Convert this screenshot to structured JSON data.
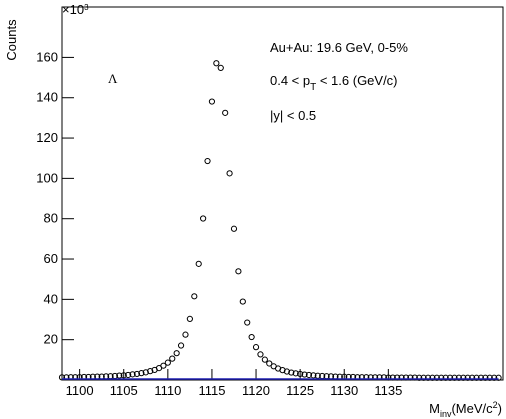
{
  "chart_data": {
    "type": "scatter",
    "ylabel": "Counts",
    "y_multiplier": {
      "base": "×10",
      "exponent": "3"
    },
    "xlabel": {
      "symbol": "M",
      "sub": "inv",
      "unit": "(MeV/c",
      "sup": "2",
      "close": ")"
    },
    "annotations": {
      "particle": "Λ",
      "system": "Au+Au: 19.6 GeV, 0-5%",
      "pt": {
        "before": "0.4 < p",
        "sub": "T",
        "after": " < 1.6 (GeV/c)"
      },
      "rapidity": "|y| < 0.5"
    },
    "xlim": [
      1098,
      1148
    ],
    "ylim": [
      0,
      185
    ],
    "xticks": [
      1100,
      1105,
      1110,
      1115,
      1120,
      1125,
      1130,
      1135
    ],
    "yticks": [
      20,
      40,
      60,
      80,
      100,
      120,
      140,
      160
    ],
    "x": [
      1098,
      1098.5,
      1099,
      1099.5,
      1100,
      1100.5,
      1101,
      1101.5,
      1102,
      1102.5,
      1103,
      1103.5,
      1104,
      1104.5,
      1105,
      1105.5,
      1106,
      1106.5,
      1107,
      1107.5,
      1108,
      1108.5,
      1109,
      1109.5,
      1110,
      1110.5,
      1111,
      1111.5,
      1112,
      1112.5,
      1113,
      1113.5,
      1114,
      1114.5,
      1115,
      1115.5,
      1116,
      1116.5,
      1117,
      1117.5,
      1118,
      1118.5,
      1119,
      1119.5,
      1120,
      1120.5,
      1121,
      1121.5,
      1122,
      1122.5,
      1123,
      1123.5,
      1124,
      1124.5,
      1125,
      1125.5,
      1126,
      1126.5,
      1127,
      1127.5,
      1128,
      1128.5,
      1129,
      1129.5,
      1130,
      1130.5,
      1131,
      1131.5,
      1132,
      1132.5,
      1133,
      1133.5,
      1134,
      1134.5,
      1135,
      1135.5,
      1136,
      1136.5,
      1137,
      1137.5,
      1138,
      1138.5,
      1139,
      1139.5,
      1140,
      1140.5,
      1141,
      1141.5,
      1142,
      1142.5,
      1143,
      1143.5,
      1144,
      1144.5,
      1145,
      1145.5,
      1146,
      1146.5,
      1147,
      1147.5
    ],
    "series": [
      {
        "color": "#000000",
        "style": "markers",
        "values": [
          1.3,
          1.3,
          1.4,
          1.4,
          1.4,
          1.5,
          1.5,
          1.6,
          1.7,
          1.7,
          1.8,
          1.9,
          2.0,
          2.2,
          2.3,
          2.5,
          2.8,
          3.0,
          3.4,
          3.8,
          4.4,
          5.0,
          5.9,
          7.1,
          8.6,
          10.6,
          13.3,
          17.1,
          22.5,
          30.3,
          41.5,
          57.6,
          80.1,
          108.6,
          138.1,
          157.1,
          154.8,
          132.5,
          102.5,
          75.0,
          53.9,
          38.9,
          28.5,
          21.3,
          16.3,
          12.7,
          10.1,
          8.2,
          6.8,
          5.7,
          4.9,
          4.2,
          3.7,
          3.3,
          3.0,
          2.7,
          2.5,
          2.3,
          2.1,
          2.0,
          1.9,
          1.8,
          1.7,
          1.6,
          1.6,
          1.5,
          1.5,
          1.4,
          1.4,
          1.4,
          1.3,
          1.3,
          1.3,
          1.3,
          1.2,
          1.2,
          1.2,
          1.2,
          1.2,
          1.2,
          1.2,
          1.1,
          1.1,
          1.1,
          1.1,
          1.1,
          1.1,
          1.1,
          1.1,
          1.1,
          1.1,
          1.1,
          1.1,
          1.1,
          1.1,
          1.1,
          1.1,
          1.1,
          1.1,
          1.1
        ]
      },
      {
        "color": "#1f1fb4",
        "style": "line",
        "values": [
          0.5,
          0.5,
          0.5,
          0.5,
          0.5,
          0.5,
          0.5,
          0.5,
          0.5,
          0.5,
          0.5,
          0.5,
          0.5,
          0.5,
          0.5,
          0.5,
          0.5,
          0.5,
          0.5,
          0.5,
          0.5,
          0.5,
          0.5,
          0.5,
          0.5,
          0.5,
          0.5,
          0.5,
          0.5,
          0.5,
          0.5,
          0.5,
          0.5,
          0.5,
          0.5,
          0.5,
          0.5,
          0.5,
          0.5,
          0.5,
          0.5,
          0.5,
          0.5,
          0.5,
          0.5,
          0.5,
          0.5,
          0.5,
          0.5,
          0.5,
          0.5,
          0.5,
          0.5,
          0.5,
          0.5,
          0.5,
          0.5,
          0.5,
          0.5,
          0.5,
          0.5,
          0.5,
          0.5,
          0.5,
          0.5,
          0.5,
          0.5,
          0.5,
          0.5,
          0.5,
          0.5,
          0.5,
          0.5,
          0.5,
          0.5,
          0.5,
          0.5,
          0.5,
          0.5,
          0.5,
          0.5,
          0.5,
          0.5,
          0.5,
          0.5,
          0.5,
          0.5,
          0.5,
          0.5,
          0.5,
          0.5,
          0.5,
          0.5,
          0.5,
          0.5,
          0.5,
          0.5,
          0.5,
          0.5,
          0.5
        ]
      }
    ]
  }
}
